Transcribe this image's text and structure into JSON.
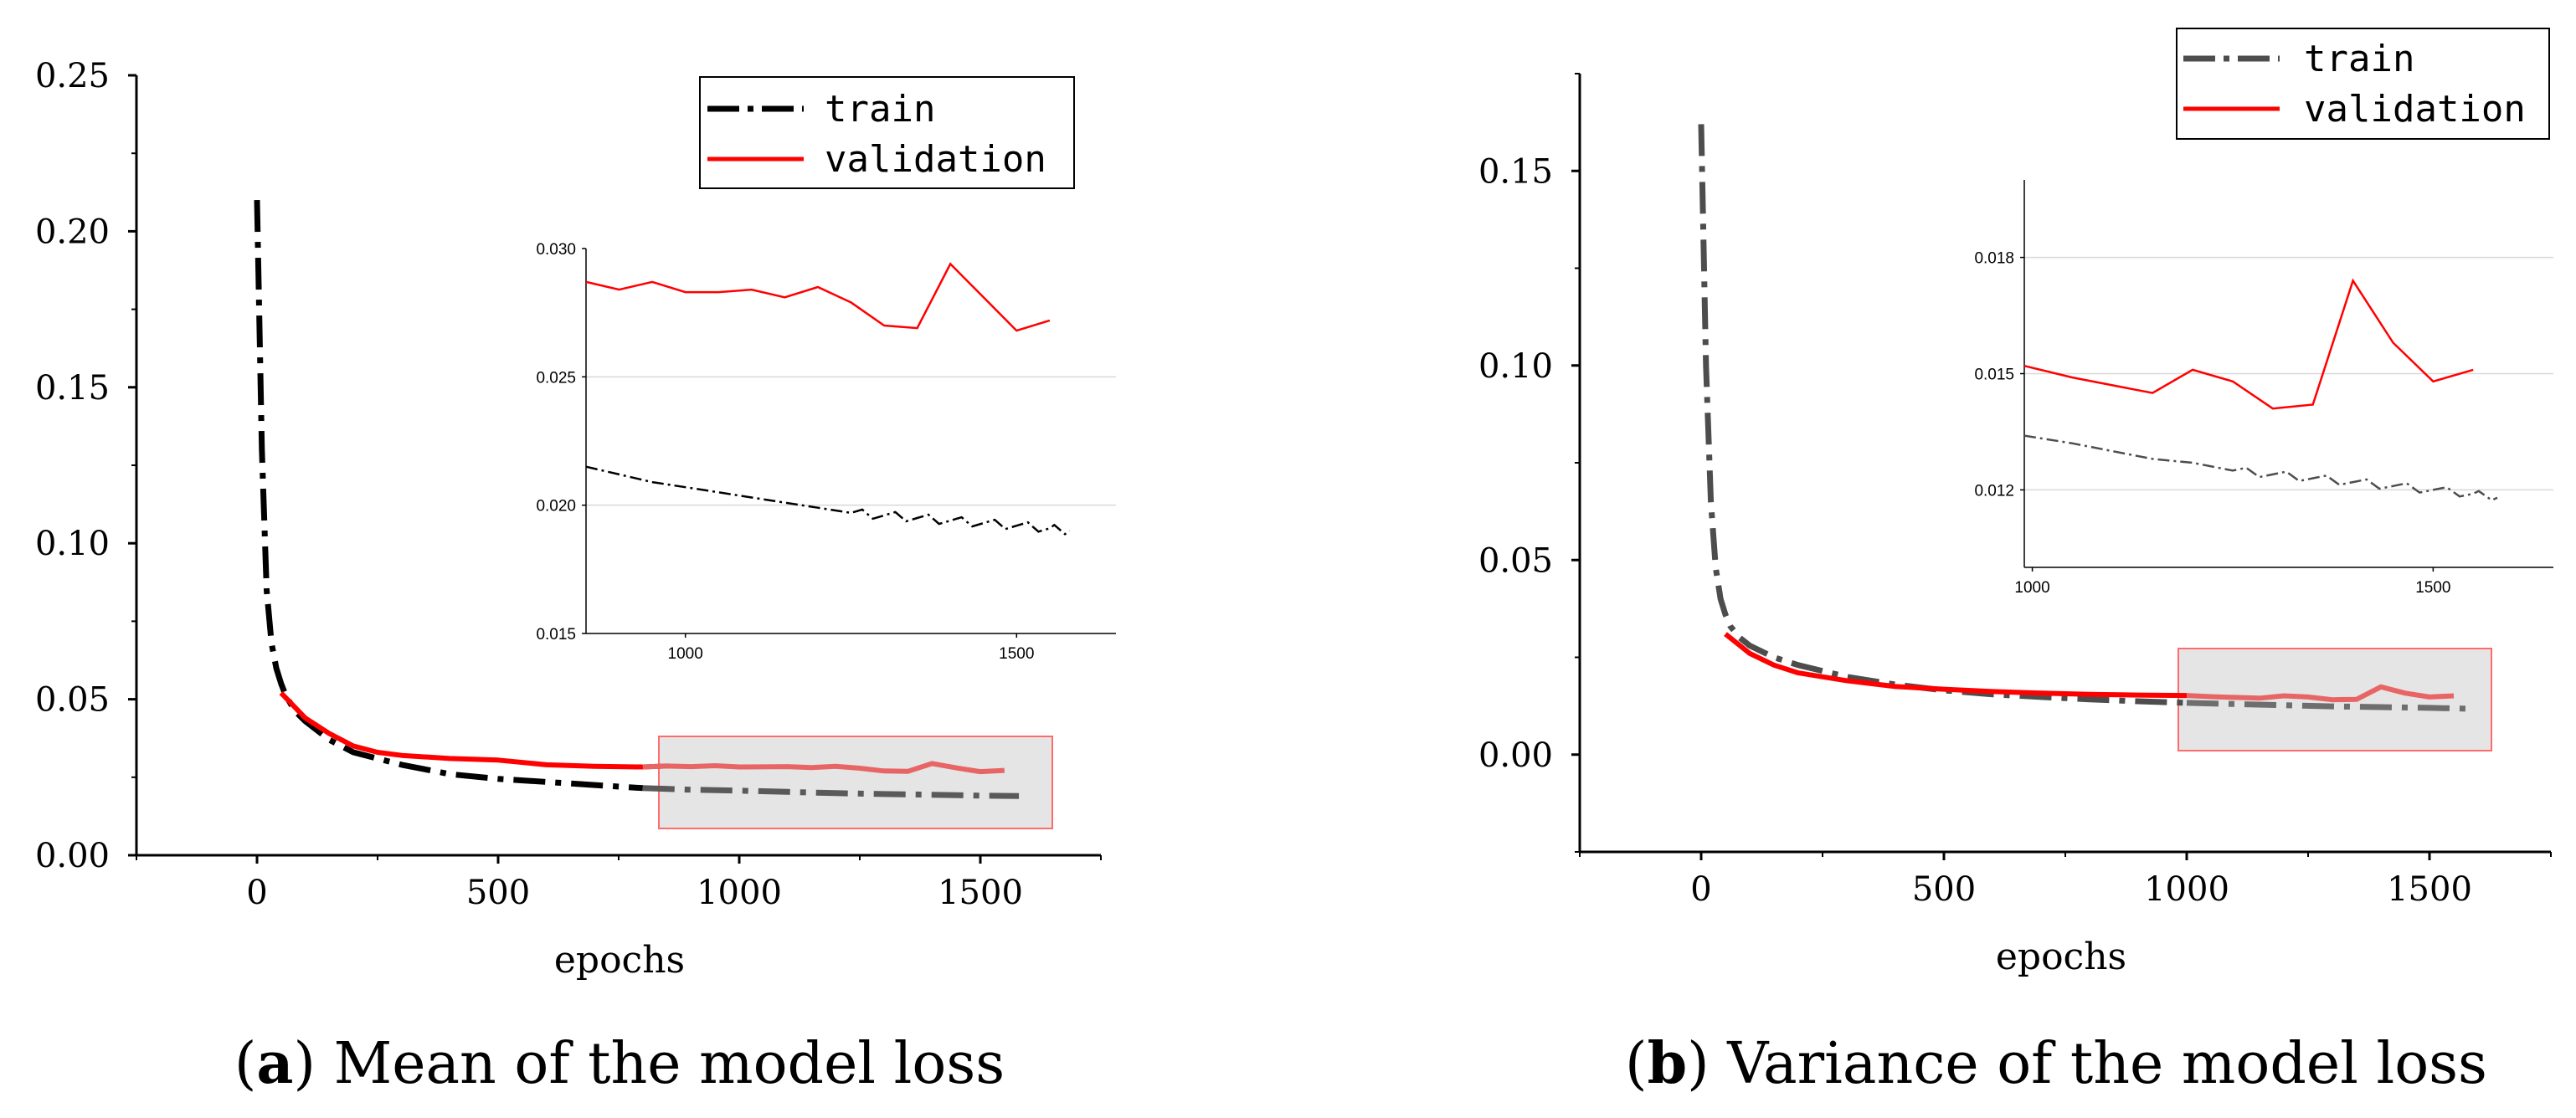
{
  "charts": [
    {
      "id": "a",
      "caption_letter": "a",
      "caption_text": "Mean of the model loss",
      "chart_data": {
        "type": "line",
        "xlabel": "epochs",
        "ylabel": "",
        "xlim": [
          -250,
          1750
        ],
        "ylim": [
          0,
          0.25
        ],
        "xticks": [
          0,
          500,
          1000,
          1500
        ],
        "xtick_labels": [
          "0",
          "500",
          "1000",
          "1500"
        ],
        "yticks": [
          0,
          0.05,
          0.1,
          0.15,
          0.2,
          0.25
        ],
        "ytick_labels": [
          "0.00",
          "0.05",
          "0.10",
          "0.15",
          "0.20",
          "0.25"
        ],
        "legend": [
          "train",
          "validation"
        ],
        "series": [
          {
            "name": "train",
            "style": "dashdot",
            "color": "#000000",
            "x": [
              0,
              10,
              20,
              30,
              40,
              50,
              60,
              80,
              100,
              150,
              200,
              300,
              400,
              500,
              600,
              700,
              800,
              900,
              1000,
              1100,
              1200,
              1300,
              1400,
              1500,
              1580
            ],
            "y": [
              0.21,
              0.13,
              0.085,
              0.068,
              0.06,
              0.055,
              0.051,
              0.046,
              0.043,
              0.037,
              0.033,
              0.029,
              0.026,
              0.0245,
              0.0235,
              0.0225,
              0.0215,
              0.021,
              0.0207,
              0.0203,
              0.0199,
              0.0196,
              0.0194,
              0.0191,
              0.019
            ]
          },
          {
            "name": "validation",
            "style": "solid",
            "color": "#ff0000",
            "x": [
              50,
              100,
              150,
              200,
              250,
              300,
              400,
              500,
              600,
              700,
              800,
              850,
              900,
              950,
              1000,
              1100,
              1150,
              1200,
              1250,
              1300,
              1350,
              1400,
              1450,
              1500,
              1550
            ],
            "y": [
              0.052,
              0.044,
              0.039,
              0.035,
              0.033,
              0.032,
              0.031,
              0.0305,
              0.029,
              0.0285,
              0.0283,
              0.0286,
              0.0284,
              0.0287,
              0.0283,
              0.0284,
              0.0281,
              0.0285,
              0.0279,
              0.027,
              0.0269,
              0.0294,
              0.028,
              0.0268,
              0.0272
            ]
          }
        ],
        "inset": {
          "xlim": [
            850,
            1650
          ],
          "ylim": [
            0.015,
            0.03
          ],
          "xticks": [
            1000,
            1500
          ],
          "xtick_labels": [
            "1000",
            "1500"
          ],
          "yticks": [
            0.015,
            0.02,
            0.025,
            0.03
          ],
          "ytick_labels": [
            "0.015",
            "0.020",
            "0.025",
            "0.030"
          ],
          "gridlines": [
            0.02,
            0.025
          ],
          "series": [
            {
              "name": "train",
              "x": [
                850,
                900,
                950,
                1000,
                1050,
                1100,
                1150,
                1200,
                1250,
                1300,
                1350,
                1400,
                1450,
                1500,
                1550,
                1580
              ],
              "y": [
                0.0215,
                0.0212,
                0.0209,
                0.0207,
                0.0205,
                0.0203,
                0.0201,
                0.0199,
                0.0197,
                0.0196,
                0.0195,
                0.0194,
                0.0193,
                0.0192,
                0.0191,
                0.019
              ]
            },
            {
              "name": "validation",
              "x": [
                850,
                900,
                950,
                1000,
                1050,
                1100,
                1150,
                1200,
                1250,
                1300,
                1350,
                1400,
                1450,
                1500,
                1550
              ],
              "y": [
                0.0287,
                0.0284,
                0.0287,
                0.0283,
                0.0283,
                0.0284,
                0.0281,
                0.0285,
                0.0279,
                0.027,
                0.0269,
                0.0294,
                0.0281,
                0.0268,
                0.0272
              ]
            }
          ]
        }
      }
    },
    {
      "id": "b",
      "caption_letter": "b",
      "caption_text": "Variance of the model loss",
      "chart_data": {
        "type": "line",
        "xlabel": "epochs",
        "ylabel": "",
        "xlim": [
          -250,
          1750
        ],
        "ylim": [
          -0.025,
          0.175
        ],
        "xticks": [
          0,
          500,
          1000,
          1500
        ],
        "xtick_labels": [
          "0",
          "500",
          "1000",
          "1500"
        ],
        "yticks": [
          0,
          0.05,
          0.1,
          0.15
        ],
        "ytick_labels": [
          "0.00",
          "0.05",
          "0.10",
          "0.15"
        ],
        "legend": [
          "train",
          "validation"
        ],
        "series": [
          {
            "name": "train",
            "style": "dashdot",
            "color": "#4d4d4d",
            "x": [
              0,
              10,
              20,
              30,
              40,
              50,
              60,
              80,
              100,
              150,
              200,
              300,
              400,
              500,
              600,
              700,
              800,
              900,
              1000,
              1100,
              1200,
              1300,
              1400,
              1500,
              1580
            ],
            "y": [
              0.162,
              0.1,
              0.065,
              0.048,
              0.04,
              0.036,
              0.033,
              0.03,
              0.028,
              0.025,
              0.023,
              0.02,
              0.018,
              0.0165,
              0.0155,
              0.0148,
              0.0142,
              0.0137,
              0.0133,
              0.013,
              0.0127,
              0.0124,
              0.0122,
              0.012,
              0.0118
            ]
          },
          {
            "name": "validation",
            "style": "solid",
            "color": "#ff0000",
            "x": [
              50,
              100,
              150,
              200,
              300,
              400,
              500,
              600,
              700,
              800,
              900,
              1000,
              1050,
              1100,
              1150,
              1200,
              1250,
              1300,
              1350,
              1400,
              1450,
              1500,
              1550
            ],
            "y": [
              0.031,
              0.026,
              0.023,
              0.021,
              0.019,
              0.0175,
              0.0168,
              0.0162,
              0.0158,
              0.0155,
              0.0153,
              0.0152,
              0.0149,
              0.0147,
              0.0145,
              0.0151,
              0.0148,
              0.0141,
              0.0142,
              0.0174,
              0.0158,
              0.0148,
              0.0151
            ]
          }
        ],
        "inset": {
          "xlim": [
            990,
            1650
          ],
          "ylim": [
            0.01,
            0.02
          ],
          "xticks": [
            1000,
            1500
          ],
          "xtick_labels": [
            "1000",
            "1500"
          ],
          "yticks": [
            0.012,
            0.015,
            0.018
          ],
          "ytick_labels": [
            "0.012",
            "0.015",
            "0.018"
          ],
          "gridlines": [
            0.012,
            0.015,
            0.018
          ],
          "series": [
            {
              "name": "train",
              "x": [
                990,
                1050,
                1100,
                1150,
                1200,
                1250,
                1300,
                1350,
                1400,
                1450,
                1500,
                1550,
                1580
              ],
              "y": [
                0.0134,
                0.0132,
                0.013,
                0.0128,
                0.0127,
                0.0125,
                0.0124,
                0.0123,
                0.0122,
                0.0121,
                0.012,
                0.0119,
                0.0118
              ]
            },
            {
              "name": "validation",
              "x": [
                990,
                1050,
                1100,
                1150,
                1200,
                1250,
                1300,
                1350,
                1400,
                1450,
                1500,
                1550
              ],
              "y": [
                0.0152,
                0.0149,
                0.0147,
                0.0145,
                0.0151,
                0.0148,
                0.0141,
                0.0142,
                0.0174,
                0.0158,
                0.0148,
                0.0151
              ]
            }
          ]
        }
      }
    }
  ]
}
